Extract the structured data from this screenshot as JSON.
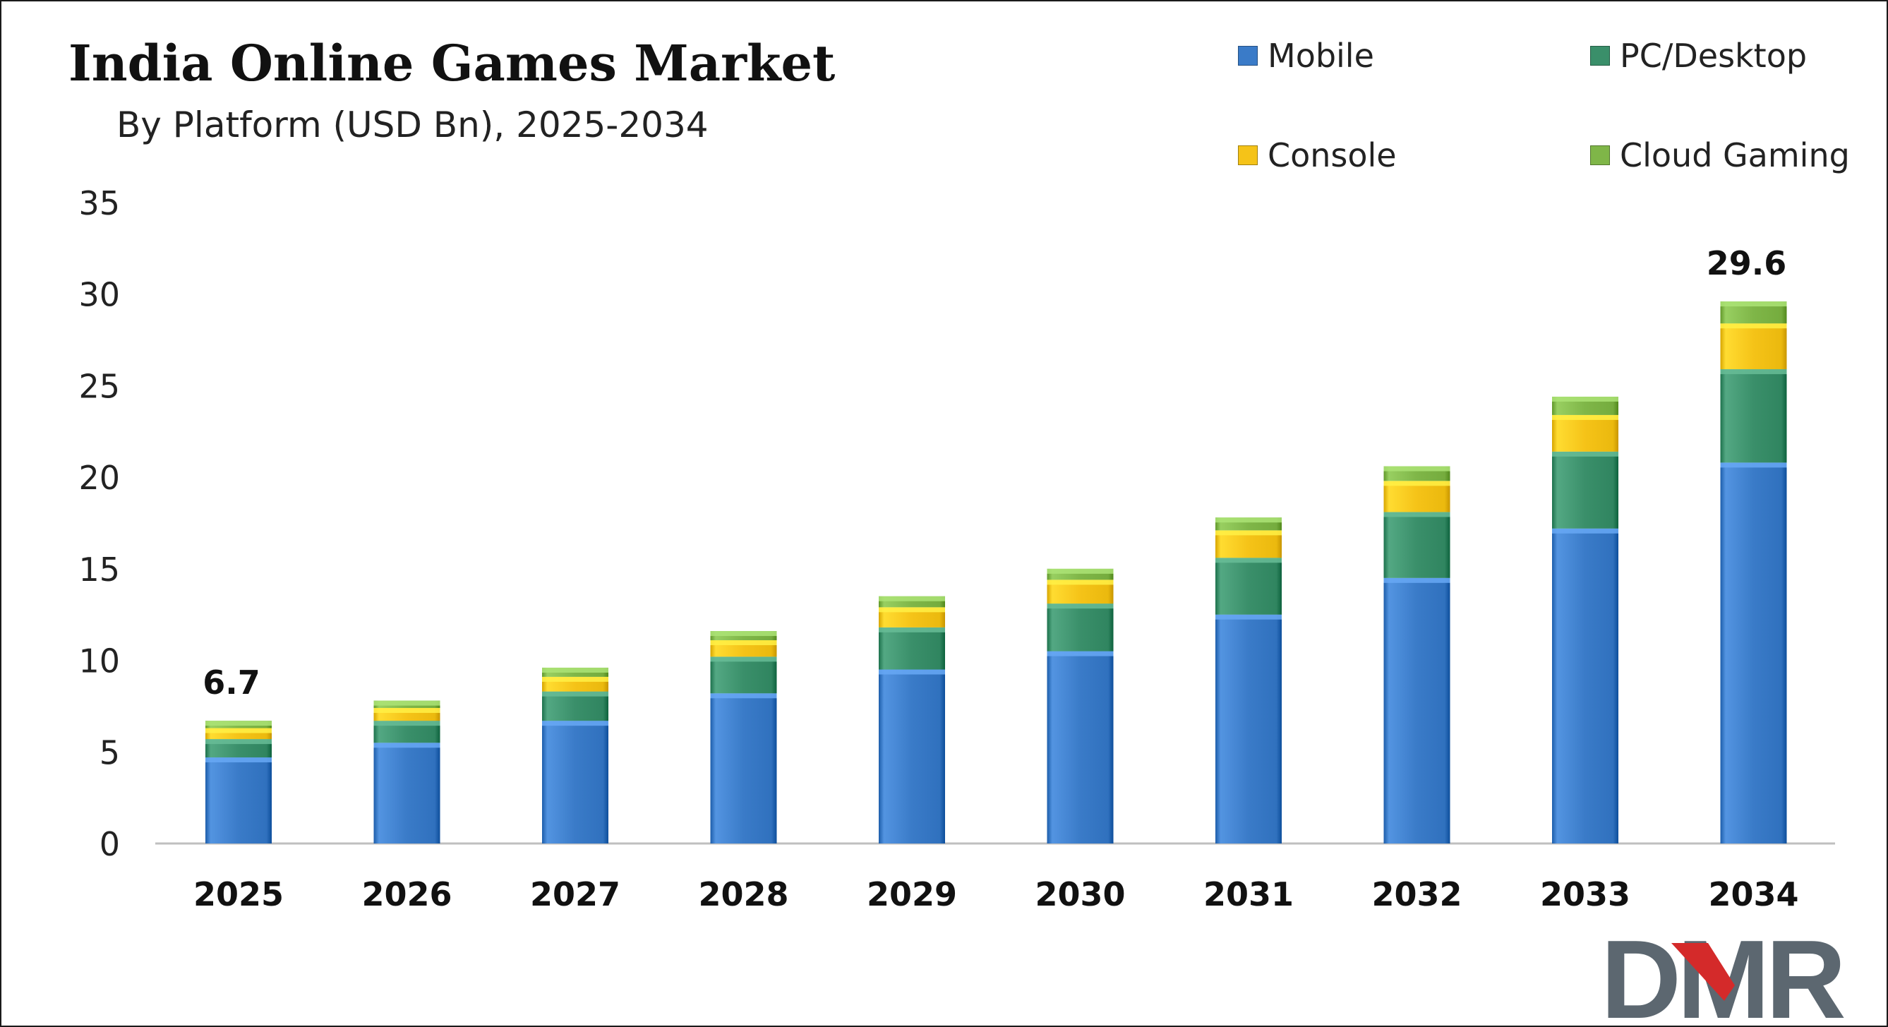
{
  "colors": {
    "mobile": "#3a7bc8",
    "pc_desktop": "#3a8f6a",
    "console": "#f5c318",
    "cloud_gaming": "#7fb648",
    "axis": "#bfbfbf",
    "text": "#111111",
    "logo_grey": "#5c6770",
    "logo_red": "#d42a2a"
  },
  "logo_text": "DMR",
  "chart_data": {
    "type": "bar",
    "stacked": true,
    "title": "India Online Games Market",
    "subtitle": "By Platform (USD Bn), 2025-2034",
    "categories": [
      "2025",
      "2026",
      "2027",
      "2028",
      "2029",
      "2030",
      "2031",
      "2032",
      "2033",
      "2034"
    ],
    "series": [
      {
        "name": "Mobile",
        "color": "#3a7bc8",
        "values": [
          4.7,
          5.5,
          6.7,
          8.2,
          9.5,
          10.5,
          12.5,
          14.5,
          17.2,
          20.8
        ]
      },
      {
        "name": "PC/Desktop",
        "color": "#3a8f6a",
        "values": [
          1.0,
          1.2,
          1.6,
          2.0,
          2.3,
          2.6,
          3.1,
          3.6,
          4.2,
          5.1
        ]
      },
      {
        "name": "Console",
        "color": "#f5c318",
        "values": [
          0.6,
          0.7,
          0.8,
          0.9,
          1.1,
          1.3,
          1.5,
          1.7,
          2.0,
          2.5
        ]
      },
      {
        "name": "Cloud Gaming",
        "color": "#7fb648",
        "values": [
          0.4,
          0.4,
          0.5,
          0.5,
          0.6,
          0.6,
          0.7,
          0.8,
          1.0,
          1.2
        ]
      }
    ],
    "totals_labels": [
      {
        "category": "2025",
        "label": "6.7"
      },
      {
        "category": "2034",
        "label": "29.6"
      }
    ],
    "ylim": [
      0,
      35
    ],
    "yticks": [
      "0",
      "5",
      "10",
      "15",
      "20",
      "25",
      "30",
      "35"
    ],
    "xlabel": "",
    "ylabel": "",
    "grid": false,
    "legend_position": "top-right"
  }
}
